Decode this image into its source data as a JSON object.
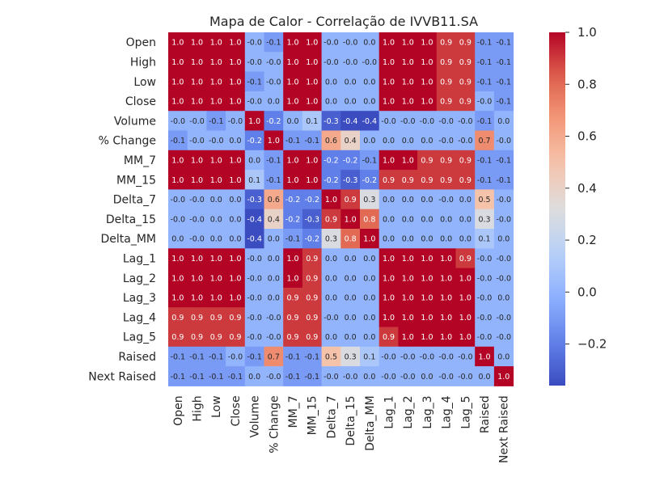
{
  "chart_data": {
    "type": "heatmap",
    "title": "Mapa de Calor - Correlação de IVVB11.SA",
    "xlabel": "",
    "ylabel": "",
    "row_labels": [
      "Open",
      "High",
      "Low",
      "Close",
      "Volume",
      "% Change",
      "MM_7",
      "MM_15",
      "Delta_7",
      "Delta_15",
      "Delta_MM",
      "Lag_1",
      "Lag_2",
      "Lag_3",
      "Lag_4",
      "Lag_5",
      "Raised",
      "Next Raised"
    ],
    "col_labels": [
      "Open",
      "High",
      "Low",
      "Close",
      "Volume",
      "% Change",
      "MM_7",
      "MM_15",
      "Delta_7",
      "Delta_15",
      "Delta_MM",
      "Lag_1",
      "Lag_2",
      "Lag_3",
      "Lag_4",
      "Lag_5",
      "Raised",
      "Next Raised"
    ],
    "values": [
      [
        1.0,
        1.0,
        1.0,
        1.0,
        -0.0,
        -0.1,
        1.0,
        1.0,
        -0.0,
        -0.0,
        0.0,
        1.0,
        1.0,
        1.0,
        0.9,
        0.9,
        -0.1,
        -0.1
      ],
      [
        1.0,
        1.0,
        1.0,
        1.0,
        -0.0,
        -0.0,
        1.0,
        1.0,
        -0.0,
        -0.0,
        -0.0,
        1.0,
        1.0,
        1.0,
        0.9,
        0.9,
        -0.1,
        -0.1
      ],
      [
        1.0,
        1.0,
        1.0,
        1.0,
        -0.1,
        -0.0,
        1.0,
        1.0,
        0.0,
        0.0,
        0.0,
        1.0,
        1.0,
        1.0,
        0.9,
        0.9,
        -0.1,
        -0.1
      ],
      [
        1.0,
        1.0,
        1.0,
        1.0,
        -0.0,
        0.0,
        1.0,
        1.0,
        0.0,
        0.0,
        0.0,
        1.0,
        1.0,
        1.0,
        0.9,
        0.9,
        -0.0,
        -0.1
      ],
      [
        -0.0,
        -0.0,
        -0.1,
        -0.0,
        1.0,
        -0.2,
        0.0,
        0.1,
        -0.3,
        -0.4,
        -0.4,
        -0.0,
        -0.0,
        -0.0,
        -0.0,
        -0.0,
        -0.1,
        0.0
      ],
      [
        -0.1,
        -0.0,
        -0.0,
        0.0,
        -0.2,
        1.0,
        -0.1,
        -0.1,
        0.6,
        0.4,
        0.0,
        0.0,
        0.0,
        0.0,
        -0.0,
        -0.0,
        0.7,
        -0.0
      ],
      [
        1.0,
        1.0,
        1.0,
        1.0,
        0.0,
        -0.1,
        1.0,
        1.0,
        -0.2,
        -0.2,
        -0.1,
        1.0,
        1.0,
        0.9,
        0.9,
        0.9,
        -0.1,
        -0.1
      ],
      [
        1.0,
        1.0,
        1.0,
        1.0,
        0.1,
        -0.1,
        1.0,
        1.0,
        -0.2,
        -0.3,
        -0.2,
        0.9,
        0.9,
        0.9,
        0.9,
        0.9,
        -0.1,
        -0.1
      ],
      [
        -0.0,
        -0.0,
        0.0,
        0.0,
        -0.3,
        0.6,
        -0.2,
        -0.2,
        1.0,
        0.9,
        0.3,
        0.0,
        0.0,
        0.0,
        -0.0,
        0.0,
        0.5,
        -0.0
      ],
      [
        -0.0,
        -0.0,
        0.0,
        0.0,
        -0.4,
        0.4,
        -0.2,
        -0.3,
        0.9,
        1.0,
        0.8,
        0.0,
        0.0,
        0.0,
        0.0,
        0.0,
        0.3,
        -0.0
      ],
      [
        0.0,
        -0.0,
        0.0,
        0.0,
        -0.4,
        0.0,
        -0.1,
        -0.2,
        0.3,
        0.8,
        1.0,
        0.0,
        0.0,
        0.0,
        0.0,
        0.0,
        0.1,
        0.0
      ],
      [
        1.0,
        1.0,
        1.0,
        1.0,
        -0.0,
        0.0,
        1.0,
        0.9,
        0.0,
        0.0,
        0.0,
        1.0,
        1.0,
        1.0,
        1.0,
        0.9,
        -0.0,
        -0.0
      ],
      [
        1.0,
        1.0,
        1.0,
        1.0,
        -0.0,
        0.0,
        1.0,
        0.9,
        0.0,
        0.0,
        0.0,
        1.0,
        1.0,
        1.0,
        1.0,
        1.0,
        -0.0,
        -0.0
      ],
      [
        1.0,
        1.0,
        1.0,
        1.0,
        -0.0,
        0.0,
        0.9,
        0.9,
        0.0,
        0.0,
        0.0,
        1.0,
        1.0,
        1.0,
        1.0,
        1.0,
        -0.0,
        0.0
      ],
      [
        0.9,
        0.9,
        0.9,
        0.9,
        -0.0,
        -0.0,
        0.9,
        0.9,
        -0.0,
        0.0,
        0.0,
        1.0,
        1.0,
        1.0,
        1.0,
        1.0,
        -0.0,
        -0.0
      ],
      [
        0.9,
        0.9,
        0.9,
        0.9,
        -0.0,
        -0.0,
        0.9,
        0.9,
        0.0,
        0.0,
        0.0,
        0.9,
        1.0,
        1.0,
        1.0,
        1.0,
        -0.0,
        -0.0
      ],
      [
        -0.1,
        -0.1,
        -0.1,
        -0.0,
        -0.1,
        0.7,
        -0.1,
        -0.1,
        0.5,
        0.3,
        0.1,
        -0.0,
        -0.0,
        -0.0,
        -0.0,
        -0.0,
        1.0,
        0.0
      ],
      [
        -0.1,
        -0.1,
        -0.1,
        -0.1,
        0.0,
        -0.0,
        -0.1,
        -0.1,
        -0.0,
        -0.0,
        0.0,
        -0.0,
        -0.0,
        0.0,
        -0.0,
        -0.0,
        0.0,
        1.0
      ]
    ],
    "colormap": "coolwarm",
    "vmin": -0.36,
    "vmax": 1.0,
    "colorbar_ticks": [
      "−0.2",
      "0.0",
      "0.2",
      "0.4",
      "0.6",
      "0.8",
      "1.0"
    ],
    "colorbar_tick_values": [
      -0.2,
      0.0,
      0.2,
      0.4,
      0.6,
      0.8,
      1.0
    ],
    "grid": false,
    "annotations": true
  }
}
